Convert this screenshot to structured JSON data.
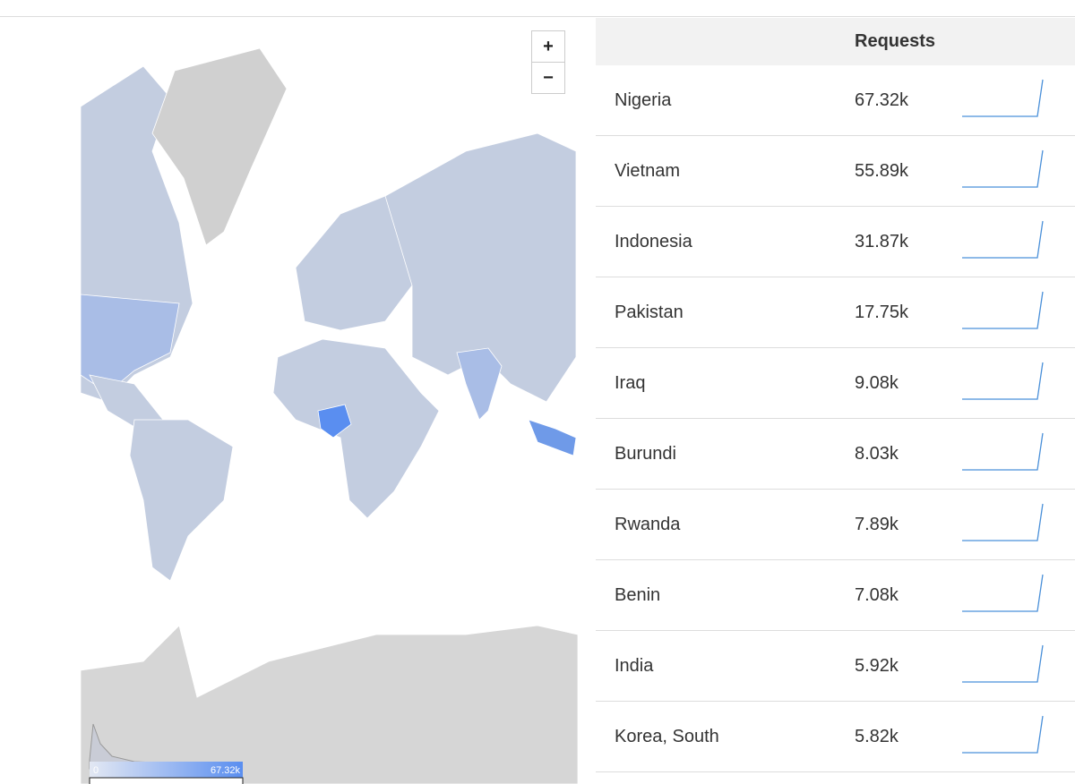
{
  "map": {
    "zoom_in": "+",
    "zoom_out": "−",
    "legend": {
      "min": "0",
      "max": "67.32k"
    }
  },
  "table": {
    "header": "Requests",
    "rows": [
      [
        "Nigeria",
        "67.32k"
      ],
      [
        "Vietnam",
        "55.89k"
      ],
      [
        "Indonesia",
        "31.87k"
      ],
      [
        "Pakistan",
        "17.75k"
      ],
      [
        "Iraq",
        "9.08k"
      ],
      [
        "Burundi",
        "8.03k"
      ],
      [
        "Rwanda",
        "7.89k"
      ],
      [
        "Benin",
        "7.08k"
      ],
      [
        "India",
        "5.92k"
      ],
      [
        "Korea, South",
        "5.82k"
      ]
    ]
  }
}
